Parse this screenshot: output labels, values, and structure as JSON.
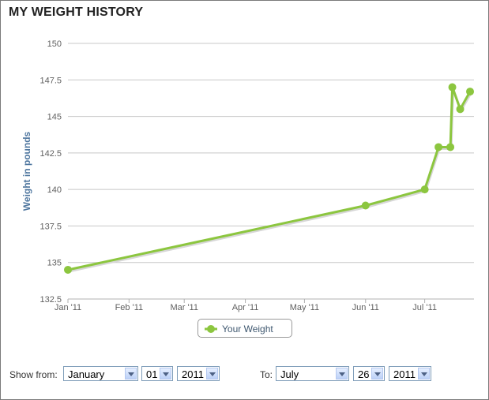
{
  "title": "MY WEIGHT HISTORY",
  "chart_data": {
    "type": "line",
    "title": "",
    "xlabel": "",
    "ylabel": "Weight in pounds",
    "x_tick_labels": [
      "Jan '11",
      "Feb '11",
      "Mar '11",
      "Apr '11",
      "May '11",
      "Jun '11",
      "Jul '11"
    ],
    "x_tick_dates": [
      "2011-01-01",
      "2011-02-01",
      "2011-03-01",
      "2011-04-01",
      "2011-05-01",
      "2011-06-01",
      "2011-07-01"
    ],
    "x_range": [
      "2011-01-01",
      "2011-07-26"
    ],
    "y_ticks": [
      132.5,
      135,
      137.5,
      140,
      142.5,
      145,
      147.5,
      150
    ],
    "ylim": [
      132.5,
      150
    ],
    "grid": "horizontal",
    "legend_position": "bottom-center",
    "series": [
      {
        "name": "Your Weight",
        "color": "#8cc63f",
        "points": [
          {
            "x": "2011-01-01",
            "y": 134.5
          },
          {
            "x": "2011-06-01",
            "y": 138.9
          },
          {
            "x": "2011-07-01",
            "y": 140.0
          },
          {
            "x": "2011-07-08",
            "y": 142.9
          },
          {
            "x": "2011-07-14",
            "y": 142.9
          },
          {
            "x": "2011-07-15",
            "y": 147.0
          },
          {
            "x": "2011-07-19",
            "y": 145.5
          },
          {
            "x": "2011-07-24",
            "y": 146.7
          }
        ]
      }
    ]
  },
  "controls": {
    "show_from_label": "Show from:",
    "to_label": "To:",
    "from_month": "January",
    "from_day": "01",
    "from_year": "2011",
    "to_month": "July",
    "to_day": "26",
    "to_year": "2011"
  }
}
